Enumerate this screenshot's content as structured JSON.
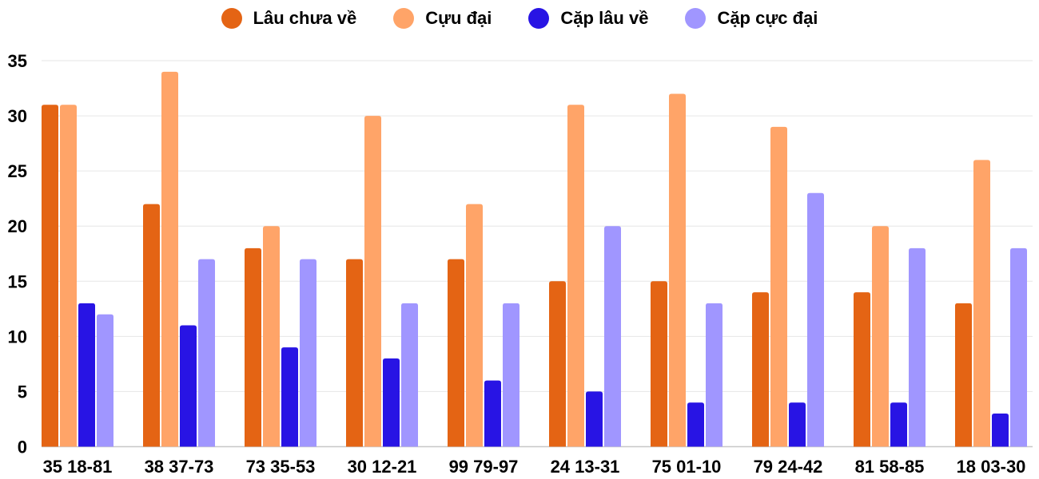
{
  "chart_data": {
    "type": "bar",
    "categories": [
      "35 18-81",
      "38 37-73",
      "73 35-53",
      "30 12-21",
      "99 79-97",
      "24 13-31",
      "75 01-10",
      "79 24-42",
      "81 58-85",
      "18 03-30"
    ],
    "series": [
      {
        "name": "Lâu chưa về",
        "color": "#e46414",
        "values": [
          31,
          22,
          18,
          17,
          17,
          15,
          15,
          14,
          14,
          13
        ]
      },
      {
        "name": "Cựu đại",
        "color": "#ffa468",
        "values": [
          31,
          34,
          20,
          30,
          22,
          31,
          32,
          29,
          20,
          26
        ]
      },
      {
        "name": "Cặp lâu về",
        "color": "#2814e4",
        "values": [
          13,
          11,
          9,
          8,
          6,
          5,
          4,
          4,
          4,
          3
        ]
      },
      {
        "name": "Cặp cực đại",
        "color": "#a096ff",
        "values": [
          12,
          17,
          17,
          13,
          13,
          20,
          13,
          23,
          18,
          18
        ]
      }
    ],
    "yticks": [
      "0",
      "5",
      "10",
      "15",
      "20",
      "25",
      "30",
      "35"
    ],
    "ylim": [
      0,
      35
    ],
    "grid": true,
    "legend_position": "top-center",
    "title": "",
    "xlabel": "",
    "ylabel": ""
  }
}
